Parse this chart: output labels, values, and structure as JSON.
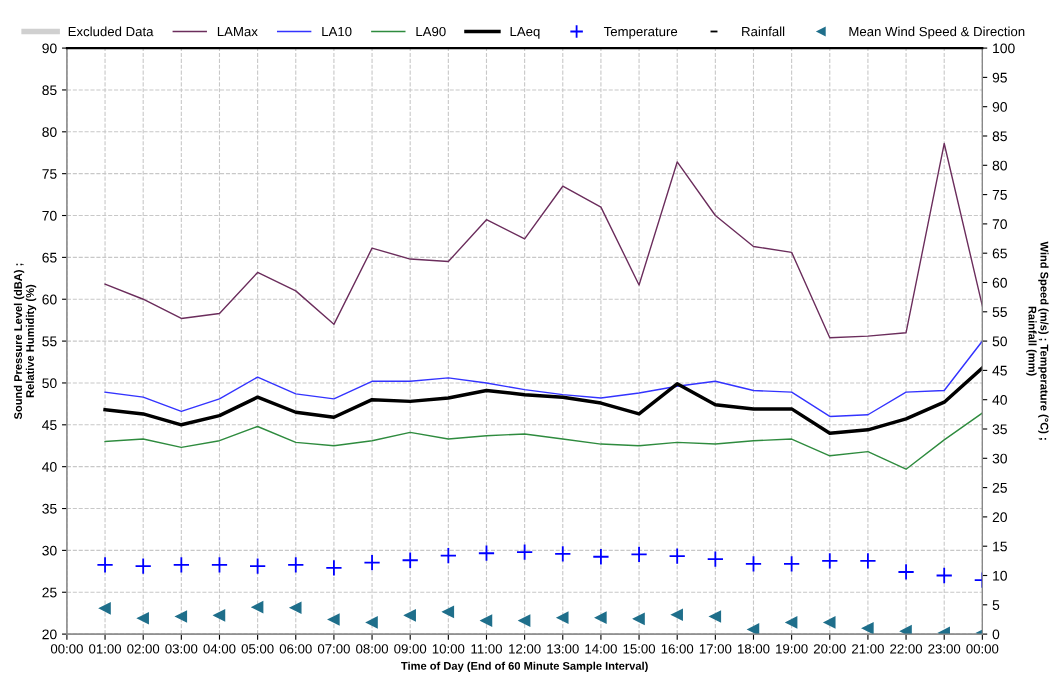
{
  "chart_data": {
    "type": "line",
    "categories": [
      "00:00",
      "01:00",
      "02:00",
      "03:00",
      "04:00",
      "05:00",
      "06:00",
      "07:00",
      "08:00",
      "09:00",
      "10:00",
      "11:00",
      "12:00",
      "13:00",
      "14:00",
      "15:00",
      "16:00",
      "17:00",
      "18:00",
      "19:00",
      "20:00",
      "21:00",
      "22:00",
      "23:00",
      "00:00"
    ],
    "series": [
      {
        "name": "Excluded Data",
        "color": "#d0d0d0",
        "values": [
          null,
          null,
          null,
          null,
          null,
          null,
          null,
          null,
          null,
          null,
          null,
          null,
          null,
          null,
          null,
          null,
          null,
          null,
          null,
          null,
          null,
          null,
          null,
          null,
          null
        ]
      },
      {
        "name": "LAMax",
        "color": "#6b2d5c",
        "values": [
          null,
          61.8,
          60,
          57.7,
          58.3,
          63.2,
          61,
          57,
          66.1,
          64.8,
          64.5,
          69.5,
          67.2,
          73.5,
          71,
          61.7,
          76.4,
          70,
          66.3,
          65.6,
          55.4,
          55.6,
          56,
          78.6,
          59.2
        ]
      },
      {
        "name": "LA10",
        "color": "#3333ff",
        "values": [
          null,
          48.9,
          48.3,
          46.6,
          48.1,
          50.7,
          48.7,
          48.1,
          50.2,
          50.2,
          50.6,
          50,
          49.2,
          48.6,
          48.2,
          48.8,
          49.6,
          50.2,
          49.1,
          48.9,
          46,
          46.2,
          48.9,
          49.1,
          55
        ]
      },
      {
        "name": "LA90",
        "color": "#2e8b3e",
        "values": [
          null,
          43,
          43.3,
          42.3,
          43.1,
          44.8,
          42.9,
          42.5,
          43.1,
          44.1,
          43.3,
          43.7,
          43.9,
          43.3,
          42.7,
          42.5,
          42.9,
          42.7,
          43.1,
          43.3,
          41.3,
          41.8,
          39.7,
          43.2,
          46.4
        ]
      },
      {
        "name": "LAeq",
        "color": "#000000",
        "values": [
          null,
          46.8,
          46.3,
          45,
          46.1,
          48.3,
          46.5,
          45.9,
          48,
          47.8,
          48.2,
          49.1,
          48.6,
          48.3,
          47.6,
          46.3,
          49.9,
          47.4,
          46.9,
          46.9,
          44,
          44.4,
          45.7,
          47.7,
          51.8
        ]
      },
      {
        "name": "Temperature",
        "color": "#0000ff",
        "type": "scatter",
        "marker": "cross",
        "axis": "y2",
        "values": [
          null,
          11.8,
          11.6,
          11.8,
          11.8,
          11.6,
          11.8,
          11.3,
          12.2,
          12.6,
          13.4,
          13.8,
          14,
          13.7,
          13.2,
          13.6,
          13.3,
          12.8,
          12,
          12,
          12.5,
          12.5,
          10.6,
          10,
          9.2
        ]
      },
      {
        "name": "Rainfall",
        "color": "#000000",
        "type": "scatter",
        "marker": "dash",
        "axis": "y2",
        "values": [
          null,
          null,
          null,
          null,
          null,
          null,
          null,
          null,
          null,
          null,
          null,
          null,
          null,
          null,
          null,
          null,
          null,
          null,
          null,
          null,
          null,
          null,
          null,
          null,
          null
        ]
      },
      {
        "name": "Mean Wind Speed & Direction",
        "color": "#1f6f8b",
        "type": "scatter",
        "marker": "triangle",
        "axis": "y2",
        "values": [
          null,
          4.4,
          2.7,
          3,
          3.2,
          4.6,
          4.5,
          2.5,
          2,
          3.2,
          3.8,
          2.3,
          2.3,
          2.8,
          2.8,
          2.6,
          3.3,
          3,
          0.8,
          2,
          2,
          1,
          0.5,
          0.2,
          0.2
        ]
      }
    ],
    "xlabel": "Time of Day (End of 60 Minute Sample Interval)",
    "ylabel": "Sound Pressure Level (dBA) ;\nRelative Humidity (%)",
    "y2label": "Wind Speed (m/s) ; Temperature (°C) ;\nRainfall (mm)",
    "ylim": [
      20,
      90
    ],
    "yticks": [
      20,
      25,
      30,
      35,
      40,
      45,
      50,
      55,
      60,
      65,
      70,
      75,
      80,
      85,
      90
    ],
    "y2lim": [
      0,
      100
    ],
    "y2ticks": [
      0,
      5,
      10,
      15,
      20,
      25,
      30,
      35,
      40,
      45,
      50,
      55,
      60,
      65,
      70,
      75,
      80,
      85,
      90,
      95,
      100
    ],
    "grid": true,
    "legend": "top"
  }
}
